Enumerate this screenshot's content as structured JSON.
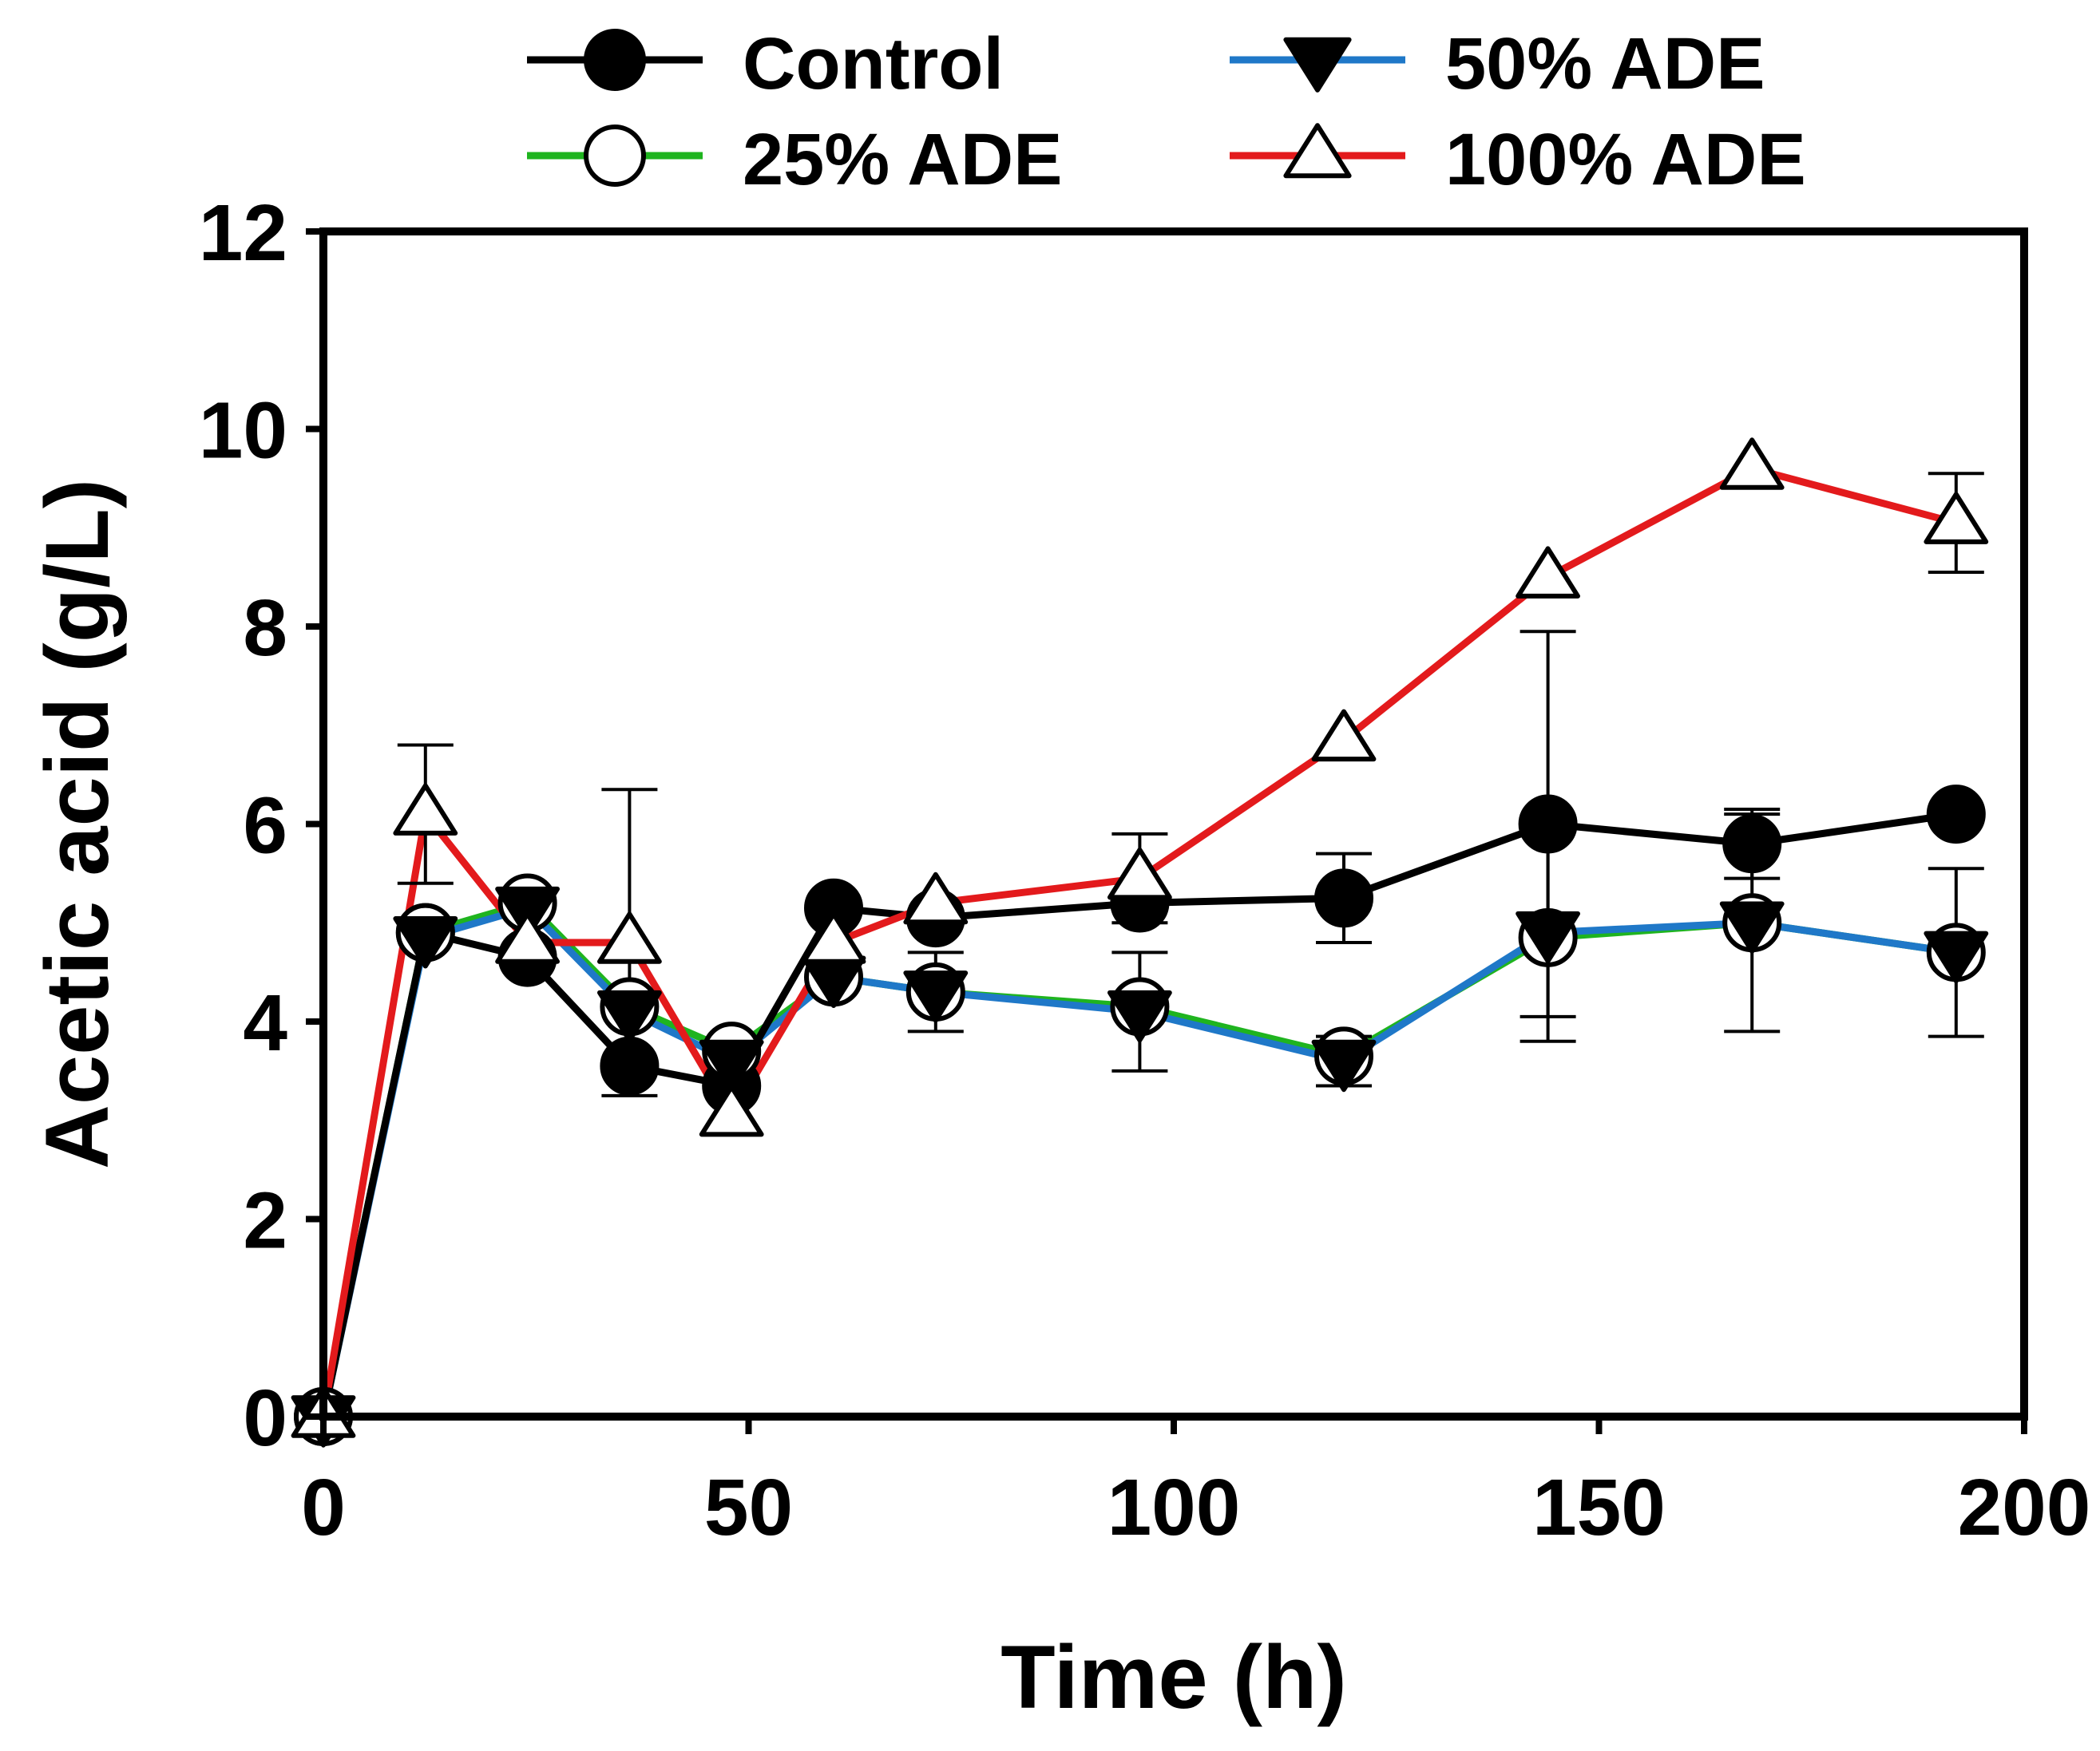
{
  "chart_data": {
    "type": "line",
    "title": "",
    "xlabel": "Time (h)",
    "ylabel": "Acetic acid (g/L)",
    "xlim": [
      0,
      200
    ],
    "ylim": [
      0,
      12
    ],
    "xticks": [
      0,
      50,
      100,
      150,
      200
    ],
    "yticks": [
      0,
      2,
      4,
      6,
      8,
      10,
      12
    ],
    "x_tick_labels": [
      "0",
      "50",
      "100",
      "150",
      "200"
    ],
    "y_tick_labels": [
      "0",
      "2",
      "4",
      "6",
      "8",
      "10",
      "12"
    ],
    "grid": false,
    "legend_position": "top",
    "series": [
      {
        "name": "Control",
        "color": "#000000",
        "marker": "filled-circle",
        "x": [
          0,
          12,
          24,
          36,
          48,
          60,
          72,
          96,
          120,
          144,
          168,
          192
        ],
        "y": [
          0,
          4.9,
          4.65,
          3.55,
          3.35,
          5.15,
          5.05,
          5.2,
          5.25,
          6.0,
          5.8,
          6.1
        ],
        "err": [
          0,
          0,
          0,
          0,
          0,
          0,
          0,
          0,
          0.45,
          1.95,
          0.35,
          0
        ]
      },
      {
        "name": "50% ADE",
        "color": "#1f78c8",
        "marker": "filled-triangle-down",
        "x": [
          0,
          12,
          24,
          36,
          48,
          60,
          72,
          96,
          120,
          144,
          168,
          192
        ],
        "y": [
          0,
          4.85,
          5.15,
          4.1,
          3.6,
          4.45,
          4.3,
          4.1,
          3.6,
          4.9,
          5.0,
          4.7
        ],
        "err": [
          0,
          0,
          0,
          0,
          0,
          0,
          0.4,
          0.6,
          0.25,
          1.1,
          1.1,
          0.85
        ]
      },
      {
        "name": "25% ADE",
        "color": "#1fb41f",
        "marker": "open-circle",
        "x": [
          0,
          12,
          24,
          36,
          48,
          60,
          72,
          96,
          120,
          144,
          168,
          192
        ],
        "y": [
          0,
          4.9,
          5.2,
          4.15,
          3.7,
          4.45,
          4.3,
          4.15,
          3.65,
          4.85,
          5.0,
          4.7
        ],
        "err": [
          0,
          0,
          0,
          0,
          0,
          0,
          0,
          0,
          0,
          0,
          0,
          0
        ]
      },
      {
        "name": "100% ADE",
        "color": "#e31a1c",
        "marker": "open-triangle-up",
        "x": [
          0,
          12,
          24,
          36,
          48,
          60,
          72,
          96,
          120,
          144,
          168,
          192
        ],
        "y": [
          0,
          6.1,
          4.8,
          4.8,
          3.05,
          4.8,
          5.2,
          5.45,
          6.85,
          8.5,
          9.6,
          9.05
        ],
        "err": [
          0,
          0.7,
          0,
          1.55,
          0,
          0,
          0,
          0.45,
          0,
          0,
          0,
          0.5
        ]
      }
    ]
  }
}
